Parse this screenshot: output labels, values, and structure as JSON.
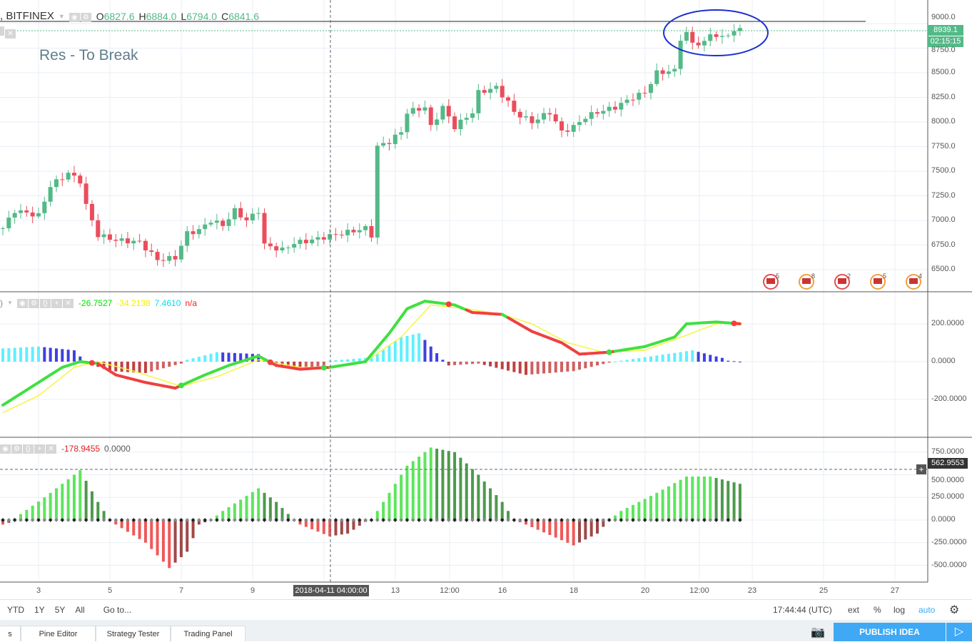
{
  "header": {
    "symbol": ", BITFINEX",
    "open_label": "O",
    "open": "6827.6",
    "high_label": "H",
    "high": "6884.0",
    "low_label": "L",
    "low": "6794.0",
    "close_label": "C",
    "close": "6841.6"
  },
  "annotation": "Res - To Break",
  "price_axis": {
    "ticks": [
      "9000.0",
      "8750.0",
      "8500.0",
      "8250.0",
      "8000.0",
      "7750.0",
      "7500.0",
      "7250.0",
      "7000.0",
      "6750.0",
      "6500.0"
    ],
    "last_price": "8939.1",
    "countdown": "02:15:15"
  },
  "events": [
    {
      "count": "5"
    },
    {
      "count": "8"
    },
    {
      "count": "2"
    },
    {
      "count": "5"
    },
    {
      "count": "4"
    }
  ],
  "indicator1": {
    "values": [
      "-26.7527",
      "-34.2138",
      "7.4610",
      "n/a"
    ],
    "colors": [
      "#00e000",
      "#f0f000",
      "#00e0f0",
      "#ff2020"
    ],
    "ticks": [
      "200.0000",
      "0.0000",
      "-200.0000"
    ]
  },
  "indicator2": {
    "values": [
      "-178.9455",
      "0.0000"
    ],
    "ticks": [
      "750.0000",
      "500.0000",
      "250.0000",
      "0.0000",
      "-250.0000",
      "-500.0000"
    ],
    "crosshair_value": "562.9553"
  },
  "time_axis": {
    "labels": [
      "3",
      "5",
      "7",
      "9",
      "13",
      "12:00",
      "16",
      "18",
      "20",
      "12:00",
      "23",
      "25",
      "27"
    ],
    "crosshair": "2018-04-11 04:00:00"
  },
  "bottom_bar": {
    "ranges": [
      "YTD",
      "1Y",
      "5Y",
      "All"
    ],
    "goto": "Go to...",
    "clock": "17:44:44 (UTC)",
    "ext": "ext",
    "pct": "%",
    "log": "log",
    "auto": "auto"
  },
  "tabs": [
    "s",
    "Pine Editor",
    "Strategy Tester",
    "Trading Panel"
  ],
  "publish": "PUBLISH IDEA",
  "colors": {
    "up": "#53b987",
    "down": "#eb4d5c",
    "accent": "#3fa9f5"
  },
  "chart_data": {
    "type": "candlestick",
    "close_keypoints": [
      [
        0,
        6920
      ],
      [
        2,
        7100
      ],
      [
        6,
        7050
      ],
      [
        8,
        7350
      ],
      [
        11,
        7480
      ],
      [
        13,
        7400
      ],
      [
        14,
        7150
      ],
      [
        16,
        6850
      ],
      [
        19,
        6800
      ],
      [
        23,
        6780
      ],
      [
        26,
        6600
      ],
      [
        29,
        6620
      ],
      [
        31,
        6870
      ],
      [
        33,
        6900
      ],
      [
        35,
        7000
      ],
      [
        37,
        6950
      ],
      [
        39,
        7100
      ],
      [
        41,
        7000
      ],
      [
        43,
        7100
      ],
      [
        44,
        6750
      ],
      [
        47,
        6700
      ],
      [
        49,
        6770
      ],
      [
        52,
        6800
      ],
      [
        54,
        6830
      ],
      [
        58,
        6880
      ],
      [
        61,
        6920
      ],
      [
        62,
        6850
      ],
      [
        63,
        7750
      ],
      [
        65,
        7800
      ],
      [
        67,
        7900
      ],
      [
        68,
        8100
      ],
      [
        71,
        8150
      ],
      [
        72,
        7950
      ],
      [
        74,
        8150
      ],
      [
        76,
        7950
      ],
      [
        79,
        8100
      ],
      [
        80,
        8300
      ],
      [
        83,
        8350
      ],
      [
        85,
        8200
      ],
      [
        86,
        8100
      ],
      [
        89,
        8000
      ],
      [
        92,
        8100
      ],
      [
        94,
        7900
      ],
      [
        96,
        7950
      ],
      [
        98,
        8050
      ],
      [
        100,
        8100
      ],
      [
        103,
        8150
      ],
      [
        106,
        8250
      ],
      [
        108,
        8300
      ],
      [
        110,
        8500
      ],
      [
        113,
        8520
      ],
      [
        114,
        8850
      ],
      [
        115,
        8900
      ],
      [
        116,
        8800
      ],
      [
        118,
        8800
      ],
      [
        119,
        8900
      ],
      [
        121,
        8850
      ],
      [
        122,
        8900
      ],
      [
        124,
        8939
      ]
    ],
    "ylim": [
      6400,
      9100
    ],
    "osc1_fast": [
      [
        0,
        -230
      ],
      [
        5,
        -130
      ],
      [
        10,
        -30
      ],
      [
        13,
        0
      ],
      [
        16,
        -10
      ],
      [
        19,
        -70
      ],
      [
        24,
        -110
      ],
      [
        29,
        -140
      ],
      [
        34,
        -70
      ],
      [
        38,
        -20
      ],
      [
        43,
        30
      ],
      [
        46,
        -20
      ],
      [
        50,
        -40
      ],
      [
        55,
        -30
      ],
      [
        61,
        0
      ],
      [
        65,
        150
      ],
      [
        68,
        280
      ],
      [
        71,
        320
      ],
      [
        76,
        300
      ],
      [
        79,
        260
      ],
      [
        84,
        250
      ],
      [
        89,
        160
      ],
      [
        94,
        100
      ],
      [
        97,
        40
      ],
      [
        102,
        50
      ],
      [
        108,
        80
      ],
      [
        113,
        130
      ],
      [
        115,
        200
      ],
      [
        120,
        210
      ],
      [
        124,
        200
      ]
    ],
    "osc1_slow": [
      [
        0,
        -270
      ],
      [
        6,
        -180
      ],
      [
        12,
        -30
      ],
      [
        16,
        0
      ],
      [
        22,
        -50
      ],
      [
        30,
        -130
      ],
      [
        36,
        -80
      ],
      [
        43,
        10
      ],
      [
        50,
        -30
      ],
      [
        56,
        -30
      ],
      [
        61,
        0
      ],
      [
        67,
        130
      ],
      [
        72,
        300
      ],
      [
        78,
        280
      ],
      [
        84,
        250
      ],
      [
        89,
        200
      ],
      [
        95,
        100
      ],
      [
        101,
        50
      ],
      [
        108,
        60
      ],
      [
        115,
        140
      ],
      [
        120,
        200
      ],
      [
        124,
        210
      ]
    ],
    "osc1_hist": [
      [
        0,
        70
      ],
      [
        6,
        80
      ],
      [
        12,
        60
      ],
      [
        14,
        -5
      ],
      [
        18,
        -50
      ],
      [
        24,
        -60
      ],
      [
        30,
        -10
      ],
      [
        31,
        10
      ],
      [
        36,
        50
      ],
      [
        43,
        40
      ],
      [
        45,
        -5
      ],
      [
        50,
        -40
      ],
      [
        54,
        -20
      ],
      [
        55,
        5
      ],
      [
        61,
        20
      ],
      [
        63,
        40
      ],
      [
        67,
        130
      ],
      [
        70,
        150
      ],
      [
        74,
        10
      ],
      [
        75,
        -20
      ],
      [
        80,
        -10
      ],
      [
        88,
        -70
      ],
      [
        96,
        -50
      ],
      [
        102,
        -5
      ],
      [
        104,
        5
      ],
      [
        116,
        60
      ],
      [
        121,
        20
      ],
      [
        122,
        5
      ],
      [
        124,
        0
      ]
    ],
    "osc1_ylim": [
      -300,
      350
    ],
    "osc2_hist": [
      [
        0,
        -50
      ],
      [
        1,
        -30
      ],
      [
        2,
        20
      ],
      [
        7,
        250
      ],
      [
        13,
        550
      ],
      [
        16,
        200
      ],
      [
        18,
        0
      ],
      [
        19,
        -50
      ],
      [
        24,
        -250
      ],
      [
        28,
        -530
      ],
      [
        31,
        -350
      ],
      [
        33,
        -50
      ],
      [
        35,
        0
      ],
      [
        37,
        100
      ],
      [
        43,
        350
      ],
      [
        46,
        200
      ],
      [
        49,
        0
      ],
      [
        50,
        -50
      ],
      [
        55,
        -180
      ],
      [
        58,
        -150
      ],
      [
        61,
        -20
      ],
      [
        62,
        0
      ],
      [
        64,
        200
      ],
      [
        68,
        600
      ],
      [
        72,
        800
      ],
      [
        76,
        750
      ],
      [
        80,
        500
      ],
      [
        84,
        200
      ],
      [
        86,
        0
      ],
      [
        88,
        -50
      ],
      [
        96,
        -280
      ],
      [
        100,
        -150
      ],
      [
        102,
        0
      ],
      [
        104,
        100
      ],
      [
        110,
        300
      ],
      [
        115,
        480
      ],
      [
        119,
        480
      ],
      [
        124,
        400
      ]
    ]
  }
}
